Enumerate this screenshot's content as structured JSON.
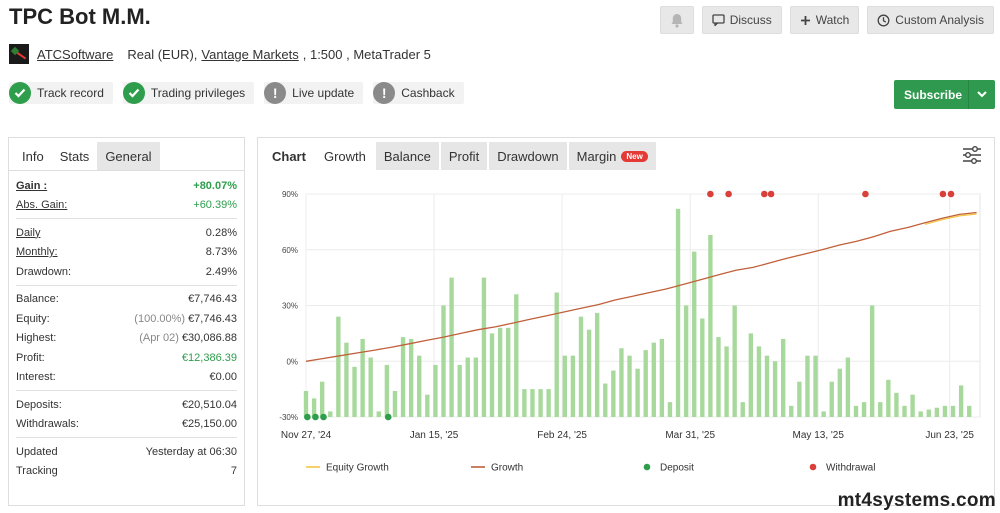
{
  "header": {
    "title": "TPC Bot M.M.",
    "actions": {
      "discuss": "Discuss",
      "watch": "Watch",
      "custom_analysis": "Custom Analysis"
    }
  },
  "account": {
    "owner": "ATCSoftware",
    "type": "Real (EUR),",
    "broker": "Vantage Markets",
    "details": ", 1:500 , MetaTrader 5"
  },
  "badges": [
    {
      "label": "Track record",
      "icon": "check-icon"
    },
    {
      "label": "Trading privileges",
      "icon": "check-icon"
    },
    {
      "label": "Live update",
      "icon": "info-icon"
    },
    {
      "label": "Cashback",
      "icon": "info-icon"
    }
  ],
  "subscribe": {
    "label": "Subscribe"
  },
  "left_tabs": {
    "info": "Info",
    "stats": "Stats",
    "general": "General"
  },
  "stats": {
    "gain": {
      "label": "Gain :",
      "value": "+80.07%"
    },
    "abs_gain": {
      "label": "Abs. Gain:",
      "value": "+60.39%"
    },
    "daily": {
      "label": "Daily",
      "value": "0.28%"
    },
    "monthly": {
      "label": "Monthly:",
      "value": "8.73%"
    },
    "drawdown": {
      "label": "Drawdown:",
      "value": "2.49%"
    },
    "balance": {
      "label": "Balance:",
      "value": "€7,746.43"
    },
    "equity": {
      "label": "Equity:",
      "note": "(100.00%)",
      "value": "€7,746.43"
    },
    "highest": {
      "label": "Highest:",
      "note": "(Apr 02)",
      "value": "€30,086.88"
    },
    "profit": {
      "label": "Profit:",
      "value": "€12,386.39"
    },
    "interest": {
      "label": "Interest:",
      "value": "€0.00"
    },
    "deposits": {
      "label": "Deposits:",
      "value": "€20,510.04"
    },
    "withdrawals": {
      "label": "Withdrawals:",
      "value": "€25,150.00"
    },
    "updated": {
      "label": "Updated",
      "value": "Yesterday at 06:30"
    },
    "tracking": {
      "label": "Tracking",
      "value": "7"
    }
  },
  "chart_tabs": {
    "chart": "Chart",
    "growth": "Growth",
    "balance": "Balance",
    "profit": "Profit",
    "drawdown": "Drawdown",
    "margin": "Margin",
    "new_badge": "New"
  },
  "chart_data": {
    "type": "bar",
    "ylim": [
      -30,
      90
    ],
    "y_ticks": [
      -30,
      0,
      30,
      60,
      90
    ],
    "y_tick_labels": [
      "-30%",
      "0%",
      "30%",
      "60%",
      "90%"
    ],
    "x_tick_labels": [
      "Nov 27, '24",
      "Jan 15, '25",
      "Feb 24, '25",
      "Mar 31, '25",
      "May 13, '25",
      "Jun 23, '25"
    ],
    "x_tick_positions": [
      0,
      0.19,
      0.38,
      0.57,
      0.76,
      0.955
    ],
    "grid": true,
    "legend_position": "bottom",
    "series": [
      {
        "name": "Equity Growth",
        "color": "#f4c542",
        "kind": "line"
      },
      {
        "name": "Growth",
        "color": "#c0603a",
        "kind": "line",
        "values": [
          0,
          1.5,
          3,
          4.5,
          6,
          7.6,
          9.4,
          11.2,
          13,
          15,
          17,
          18.5,
          20.5,
          22.5,
          24.5,
          26.5,
          28.5,
          30.5,
          33,
          35,
          37,
          39,
          41.5,
          44,
          46.5,
          49,
          50.5,
          53,
          55.5,
          57.7,
          60,
          62.5,
          64.5,
          67,
          70,
          72,
          74.5,
          77,
          79,
          80.07
        ]
      },
      {
        "name": "Deposit",
        "color": "#2e9e4c",
        "kind": "marker",
        "positions": [
          0.002,
          0.014,
          0.026,
          0.122
        ],
        "level": -30
      },
      {
        "name": "Withdrawal",
        "color": "#d9403a",
        "kind": "marker",
        "positions": [
          0.6,
          0.627,
          0.68,
          0.69,
          0.83,
          0.945,
          0.957
        ],
        "level": 90
      }
    ],
    "bars": [
      {
        "t": 0.0,
        "v": -16
      },
      {
        "t": 0.012,
        "v": -20
      },
      {
        "t": 0.024,
        "v": -11
      },
      {
        "t": 0.036,
        "v": -27
      },
      {
        "t": 0.048,
        "v": 24
      },
      {
        "t": 0.06,
        "v": 10
      },
      {
        "t": 0.072,
        "v": -3
      },
      {
        "t": 0.084,
        "v": 12
      },
      {
        "t": 0.096,
        "v": 2
      },
      {
        "t": 0.108,
        "v": -27
      },
      {
        "t": 0.12,
        "v": -2
      },
      {
        "t": 0.132,
        "v": -16
      },
      {
        "t": 0.144,
        "v": 13
      },
      {
        "t": 0.156,
        "v": 12
      },
      {
        "t": 0.168,
        "v": 3
      },
      {
        "t": 0.18,
        "v": -18
      },
      {
        "t": 0.192,
        "v": -2
      },
      {
        "t": 0.204,
        "v": 30
      },
      {
        "t": 0.216,
        "v": 45
      },
      {
        "t": 0.228,
        "v": -2
      },
      {
        "t": 0.24,
        "v": 2
      },
      {
        "t": 0.252,
        "v": 2
      },
      {
        "t": 0.264,
        "v": 45
      },
      {
        "t": 0.276,
        "v": 15
      },
      {
        "t": 0.288,
        "v": 18
      },
      {
        "t": 0.3,
        "v": 18
      },
      {
        "t": 0.312,
        "v": 36
      },
      {
        "t": 0.324,
        "v": -15
      },
      {
        "t": 0.336,
        "v": -15
      },
      {
        "t": 0.348,
        "v": -15
      },
      {
        "t": 0.36,
        "v": -15
      },
      {
        "t": 0.372,
        "v": 37
      },
      {
        "t": 0.384,
        "v": 3
      },
      {
        "t": 0.396,
        "v": 3
      },
      {
        "t": 0.408,
        "v": 24
      },
      {
        "t": 0.42,
        "v": 17
      },
      {
        "t": 0.432,
        "v": 26
      },
      {
        "t": 0.444,
        "v": -12
      },
      {
        "t": 0.456,
        "v": -5
      },
      {
        "t": 0.468,
        "v": 7
      },
      {
        "t": 0.48,
        "v": 3
      },
      {
        "t": 0.492,
        "v": -4
      },
      {
        "t": 0.504,
        "v": 6
      },
      {
        "t": 0.516,
        "v": 10
      },
      {
        "t": 0.528,
        "v": 12
      },
      {
        "t": 0.54,
        "v": -22
      },
      {
        "t": 0.552,
        "v": 82
      },
      {
        "t": 0.564,
        "v": 30
      },
      {
        "t": 0.576,
        "v": 59
      },
      {
        "t": 0.588,
        "v": 23
      },
      {
        "t": 0.6,
        "v": 68
      },
      {
        "t": 0.612,
        "v": 13
      },
      {
        "t": 0.624,
        "v": 8
      },
      {
        "t": 0.636,
        "v": 30
      },
      {
        "t": 0.648,
        "v": -22
      },
      {
        "t": 0.66,
        "v": 15
      },
      {
        "t": 0.672,
        "v": 8
      },
      {
        "t": 0.684,
        "v": 3
      },
      {
        "t": 0.696,
        "v": 0
      },
      {
        "t": 0.708,
        "v": 12
      },
      {
        "t": 0.72,
        "v": -24
      },
      {
        "t": 0.732,
        "v": -11
      },
      {
        "t": 0.744,
        "v": 3
      },
      {
        "t": 0.756,
        "v": 3
      },
      {
        "t": 0.768,
        "v": -27
      },
      {
        "t": 0.78,
        "v": -11
      },
      {
        "t": 0.792,
        "v": -4
      },
      {
        "t": 0.804,
        "v": 2
      },
      {
        "t": 0.816,
        "v": -24
      },
      {
        "t": 0.828,
        "v": -22
      },
      {
        "t": 0.84,
        "v": 30
      },
      {
        "t": 0.852,
        "v": -22
      },
      {
        "t": 0.864,
        "v": -10
      },
      {
        "t": 0.876,
        "v": -17
      },
      {
        "t": 0.888,
        "v": -24
      },
      {
        "t": 0.9,
        "v": -18
      },
      {
        "t": 0.912,
        "v": -27
      },
      {
        "t": 0.924,
        "v": -26
      },
      {
        "t": 0.936,
        "v": -25
      },
      {
        "t": 0.948,
        "v": -24
      },
      {
        "t": 0.96,
        "v": -24
      },
      {
        "t": 0.972,
        "v": -13
      },
      {
        "t": 0.984,
        "v": -24
      }
    ]
  },
  "watermark": "mt4systems.com"
}
